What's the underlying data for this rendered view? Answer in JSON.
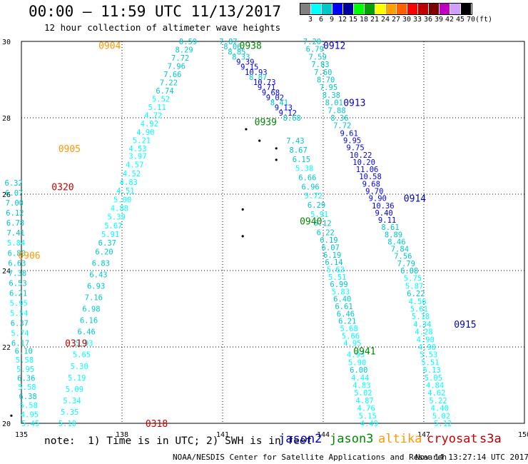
{
  "header": {
    "title": "00:00 – 11:59 UTC 11/13/2017",
    "subtitle": "12 hour collection of altimeter wave heights"
  },
  "color_scale": {
    "unit_label": "(ft)",
    "colors": [
      "#808080",
      "#00ffff",
      "#00c8c8",
      "#0000ff",
      "#0000a0",
      "#00ff00",
      "#00a000",
      "#ffff00",
      "#ffa000",
      "#ff6000",
      "#ff0000",
      "#c00000",
      "#800000",
      "#c000c0",
      "#d0a0ff",
      "#000000"
    ],
    "tick_labels": [
      "3",
      "6",
      "9",
      "12",
      "15",
      "18",
      "21",
      "24",
      "27",
      "30",
      "33",
      "36",
      "39",
      "42",
      "45",
      "70"
    ]
  },
  "footer": {
    "note": "note:  1) Time is in UTC; 2) SWH is in feet",
    "legend": [
      {
        "name": "jason2",
        "color": "#0000cc"
      },
      {
        "name": "jason3",
        "color": "#008800"
      },
      {
        "name": "altika",
        "color": "#ff9900"
      },
      {
        "name": "cryosat",
        "color": "#cc0000"
      },
      {
        "name": "s3a",
        "color": "#aa0000"
      }
    ],
    "credit": "NOAA/NESDIS Center for Satellite Applications and Research",
    "timestamp": "Nov 14 13:27:14 UTC 2017"
  },
  "chart_data": {
    "type": "scatter",
    "title": "",
    "xlabel": "",
    "ylabel": "",
    "xlim": [
      135,
      150
    ],
    "ylim": [
      20,
      30
    ],
    "x_ticks": [
      "135",
      "138",
      "141",
      "144",
      "147",
      "150"
    ],
    "y_ticks": [
      "20",
      "22",
      "24",
      "26",
      "28",
      "30"
    ],
    "grid": true,
    "pass_labels": [
      {
        "text": "0904",
        "x": 137.3,
        "y": 29.9,
        "mission": "altika"
      },
      {
        "text": "0905",
        "x": 136.1,
        "y": 27.2,
        "mission": "altika"
      },
      {
        "text": "0906",
        "x": 134.9,
        "y": 24.4,
        "mission": "altika"
      },
      {
        "text": "0938",
        "x": 141.5,
        "y": 29.9,
        "mission": "jason3"
      },
      {
        "text": "0939",
        "x": 141.95,
        "y": 27.9,
        "mission": "jason3"
      },
      {
        "text": "0940",
        "x": 143.3,
        "y": 25.3,
        "mission": "jason3"
      },
      {
        "text": "0941",
        "x": 144.9,
        "y": 21.9,
        "mission": "jason3"
      },
      {
        "text": "0912",
        "x": 144.0,
        "y": 29.9,
        "mission": "jason2"
      },
      {
        "text": "0913",
        "x": 144.6,
        "y": 28.4,
        "mission": "jason2"
      },
      {
        "text": "0914",
        "x": 146.4,
        "y": 25.9,
        "mission": "jason2"
      },
      {
        "text": "0915",
        "x": 147.9,
        "y": 22.6,
        "mission": "jason2"
      },
      {
        "text": "0320",
        "x": 135.9,
        "y": 26.2,
        "mission": "cryosat"
      },
      {
        "text": "0319",
        "x": 136.3,
        "y": 22.1,
        "mission": "cryosat"
      },
      {
        "text": "0318",
        "x": 138.7,
        "y": 20.0,
        "mission": "cryosat"
      }
    ],
    "series": [
      {
        "name": "0904",
        "x_start": 139.7,
        "x_end": 138.2,
        "y_start": 30.0,
        "y_end": 27.2,
        "values": [
          "8.59",
          "8.29",
          "7.72",
          "7.96",
          "7.66",
          "7.22",
          "6.74",
          "5.52",
          "5.11",
          "4.72",
          "4.92",
          "4.90",
          "5.21",
          "4.53"
        ]
      },
      {
        "name": "0905",
        "x_start": 138.2,
        "x_end": 137.2,
        "y_start": 27.0,
        "y_end": 24.5,
        "values": [
          "3.97",
          "4.57",
          "4.52",
          "4.83",
          "4.51",
          "5.00",
          "4.88",
          "5.39",
          "5.67",
          "5.91",
          "6.37",
          "6.20"
        ]
      },
      {
        "name": "0906",
        "x_start": 137.1,
        "x_end": 136.1,
        "y_start": 24.2,
        "y_end": 20.0,
        "values": [
          "6.83",
          "6.43",
          "6.93",
          "7.16",
          "6.98",
          "6.16",
          "6.46",
          "5.93",
          "5.65",
          "5.30",
          "5.19",
          "5.09",
          "5.34",
          "5.35",
          "5.10"
        ]
      },
      {
        "name": "0320",
        "x_start": 134.5,
        "x_end": 134.7,
        "y_start": 26.3,
        "y_end": 22.1,
        "values": [
          "6.32",
          "6.07",
          "7.00",
          "6.12",
          "6.78",
          "7.41",
          "5.84",
          "6.80",
          "6.63",
          "7.38",
          "6.53",
          "6.21",
          "5.95",
          "5.54",
          "6.37",
          "5.74",
          "6.17"
        ]
      },
      {
        "name": "0319",
        "x_start": 134.8,
        "x_end": 135.0,
        "y_start": 21.9,
        "y_end": 20.0,
        "values": [
          "6.10",
          "5.58",
          "5.95",
          "6.36",
          "5.58",
          "6.38",
          "5.58",
          "4.95",
          "5.45"
        ]
      },
      {
        "name": "0938",
        "x_start": 140.9,
        "x_end": 142.8,
        "y_start": 30.0,
        "y_end": 28.0,
        "values": [
          "7.87",
          "8.06",
          "8.85",
          "8.33",
          "9.39",
          "9.15",
          "10.93",
          "8.87",
          "10.73",
          "9.71",
          "9.68",
          "9.02",
          "8.41",
          "9.13",
          "9.12",
          "8.68"
        ]
      },
      {
        "name": "0939",
        "x_start": 142.9,
        "x_end": 143.8,
        "y_start": 27.4,
        "y_end": 25.0,
        "values": [
          "7.43",
          "8.67",
          "6.15",
          "5.38",
          "6.66",
          "6.96",
          "5.72",
          "6.29",
          "5.91",
          "6.12",
          "6.22"
        ]
      },
      {
        "name": "0940",
        "x_start": 143.9,
        "x_end": 144.6,
        "y_start": 24.8,
        "y_end": 22.1,
        "values": [
          "6.19",
          "6.07",
          "6.19",
          "6.14",
          "5.63",
          "5.51",
          "6.99",
          "5.83",
          "6.40",
          "6.61",
          "6.46",
          "6.21",
          "5.68",
          "5.66",
          "4.95"
        ]
      },
      {
        "name": "0941",
        "x_start": 144.7,
        "x_end": 145.1,
        "y_start": 21.8,
        "y_end": 20.0,
        "values": [
          "4.93",
          "5.90",
          "6.00",
          "4.44",
          "4.83",
          "5.02",
          "4.87",
          "4.76",
          "5.15",
          "4.49"
        ]
      },
      {
        "name": "0912",
        "x_start": 143.4,
        "x_end": 144.3,
        "y_start": 30.0,
        "y_end": 27.8,
        "values": [
          "7.20",
          "6.79",
          "7.59",
          "7.83",
          "7.60",
          "8.70",
          "7.95",
          "8.38",
          "8.01",
          "7.88",
          "8.36",
          "7.72"
        ]
      },
      {
        "name": "0913",
        "x_start": 144.5,
        "x_end": 146.3,
        "y_start": 27.6,
        "y_end": 24.0,
        "values": [
          "9.61",
          "9.95",
          "9.75",
          "10.22",
          "10.20",
          "11.06",
          "10.58",
          "9.68",
          "9.70",
          "9.90",
          "10.36",
          "9.40",
          "9.11",
          "8.61",
          "8.89",
          "8.46",
          "7.84",
          "7.56",
          "7.79",
          "6.08"
        ]
      },
      {
        "name": "0915",
        "x_start": 146.4,
        "x_end": 147.3,
        "y_start": 23.8,
        "y_end": 20.0,
        "values": [
          "5.75",
          "5.87",
          "6.22",
          "4.56",
          "5.61",
          "5.18",
          "4.34",
          "4.28",
          "4.90",
          "4.90",
          "5.53",
          "5.51",
          "5.13",
          "5.05",
          "4.84",
          "4.62",
          "5.22",
          "4.40",
          "5.02",
          "5.12"
        ]
      }
    ]
  }
}
